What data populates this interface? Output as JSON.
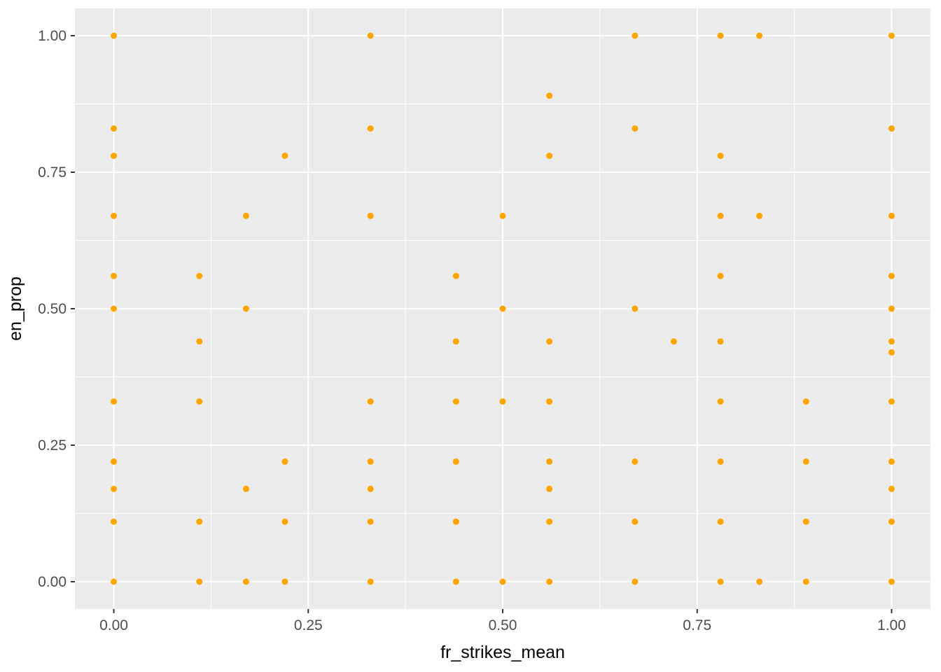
{
  "chart_data": {
    "type": "scatter",
    "title": "",
    "xlabel": "fr_strikes_mean",
    "ylabel": "en_prop",
    "x_range": [
      -0.05,
      1.05
    ],
    "y_range": [
      -0.05,
      1.05
    ],
    "x_ticks": [
      {
        "v": 0.0,
        "label": "0.00"
      },
      {
        "v": 0.25,
        "label": "0.25"
      },
      {
        "v": 0.5,
        "label": "0.50"
      },
      {
        "v": 0.75,
        "label": "0.75"
      },
      {
        "v": 1.0,
        "label": "1.00"
      }
    ],
    "y_ticks": [
      {
        "v": 0.0,
        "label": "0.00"
      },
      {
        "v": 0.25,
        "label": "0.25"
      },
      {
        "v": 0.5,
        "label": "0.50"
      },
      {
        "v": 0.75,
        "label": "0.75"
      },
      {
        "v": 1.0,
        "label": "1.00"
      }
    ],
    "x_minor": [
      0.125,
      0.375,
      0.625,
      0.875
    ],
    "y_minor": [
      0.125,
      0.375,
      0.625,
      0.875
    ],
    "grid": true,
    "legend": "none",
    "points": [
      [
        0,
        1
      ],
      [
        0.33,
        1
      ],
      [
        0.67,
        1
      ],
      [
        0.78,
        1
      ],
      [
        0.83,
        1
      ],
      [
        1,
        1
      ],
      [
        0.56,
        0.89
      ],
      [
        0,
        0.83
      ],
      [
        0.33,
        0.83
      ],
      [
        0.67,
        0.83
      ],
      [
        1,
        0.83
      ],
      [
        0,
        0.78
      ],
      [
        0.22,
        0.78
      ],
      [
        0.56,
        0.78
      ],
      [
        0.78,
        0.78
      ],
      [
        0,
        0.67
      ],
      [
        0.17,
        0.67
      ],
      [
        0.33,
        0.67
      ],
      [
        0.5,
        0.67
      ],
      [
        0.78,
        0.67
      ],
      [
        0.83,
        0.67
      ],
      [
        1,
        0.67
      ],
      [
        0,
        0.56
      ],
      [
        0.11,
        0.56
      ],
      [
        0.44,
        0.56
      ],
      [
        0.78,
        0.56
      ],
      [
        1,
        0.56
      ],
      [
        0,
        0.5
      ],
      [
        0.17,
        0.5
      ],
      [
        0.5,
        0.5
      ],
      [
        0.67,
        0.5
      ],
      [
        1,
        0.5
      ],
      [
        0.11,
        0.44
      ],
      [
        0.44,
        0.44
      ],
      [
        0.56,
        0.44
      ],
      [
        0.72,
        0.44
      ],
      [
        0.78,
        0.44
      ],
      [
        1,
        0.44
      ],
      [
        1,
        0.42
      ],
      [
        0,
        0.33
      ],
      [
        0.11,
        0.33
      ],
      [
        0.33,
        0.33
      ],
      [
        0.44,
        0.33
      ],
      [
        0.5,
        0.33
      ],
      [
        0.56,
        0.33
      ],
      [
        0.78,
        0.33
      ],
      [
        0.89,
        0.33
      ],
      [
        1,
        0.33
      ],
      [
        0,
        0.22
      ],
      [
        0.22,
        0.22
      ],
      [
        0.33,
        0.22
      ],
      [
        0.44,
        0.22
      ],
      [
        0.56,
        0.22
      ],
      [
        0.67,
        0.22
      ],
      [
        0.78,
        0.22
      ],
      [
        0.89,
        0.22
      ],
      [
        1,
        0.22
      ],
      [
        0,
        0.17
      ],
      [
        0.17,
        0.17
      ],
      [
        0.33,
        0.17
      ],
      [
        0.56,
        0.17
      ],
      [
        1,
        0.17
      ],
      [
        0,
        0.11
      ],
      [
        0.11,
        0.11
      ],
      [
        0.22,
        0.11
      ],
      [
        0.33,
        0.11
      ],
      [
        0.44,
        0.11
      ],
      [
        0.56,
        0.11
      ],
      [
        0.67,
        0.11
      ],
      [
        0.78,
        0.11
      ],
      [
        0.89,
        0.11
      ],
      [
        1,
        0.11
      ],
      [
        0,
        0
      ],
      [
        0.11,
        0
      ],
      [
        0.17,
        0
      ],
      [
        0.22,
        0
      ],
      [
        0.33,
        0
      ],
      [
        0.44,
        0
      ],
      [
        0.5,
        0
      ],
      [
        0.56,
        0
      ],
      [
        0.67,
        0
      ],
      [
        0.78,
        0
      ],
      [
        0.83,
        0
      ],
      [
        0.89,
        0
      ],
      [
        1,
        0
      ]
    ]
  },
  "style": {
    "background": "#FFFFFF",
    "panel_bg": "#EBEBEB",
    "grid_major": "#FFFFFF",
    "grid_minor": "#FFFFFF",
    "point_color": "#FFA500",
    "point_radius": 4.5,
    "tick_label_color": "#4D4D4D",
    "axis_title_color": "#000000",
    "tick_mark_color": "#333333"
  }
}
